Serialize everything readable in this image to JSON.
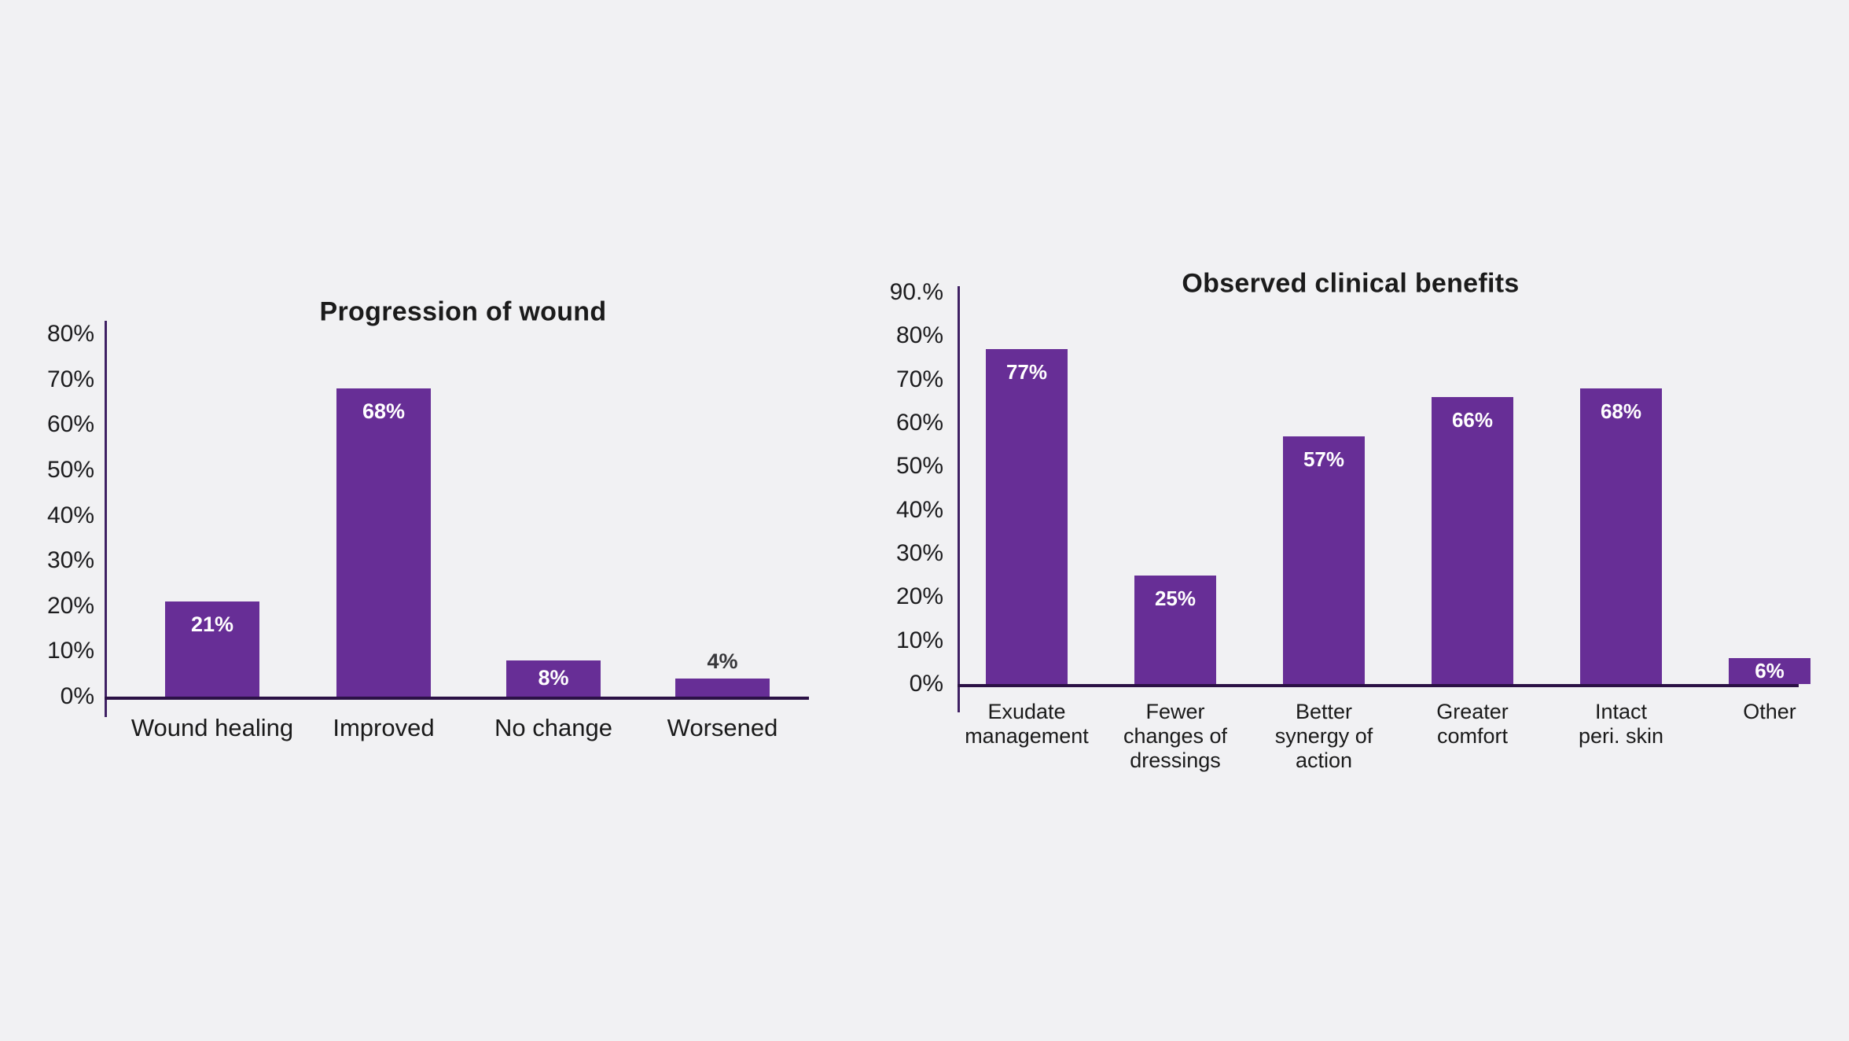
{
  "page": {
    "background": "#f1f1f3"
  },
  "colors": {
    "bar": "#672e96",
    "axis_line": "#3f2063",
    "baseline": "#2b1145",
    "title_text": "#1b1b1b",
    "tick_text": "#1c1c1e",
    "category_text": "#1a1a1a",
    "value_label_inside": "#ffffff",
    "value_label_outside": "#38383b"
  },
  "chart_data": [
    {
      "type": "bar",
      "title": "Progression of wound",
      "categories": [
        "Wound healing",
        "Improved",
        "No change",
        "Worsened"
      ],
      "category_lines": [
        [
          "Wound healing"
        ],
        [
          "Improved"
        ],
        [
          "No change"
        ],
        [
          "Worsened"
        ]
      ],
      "values": [
        21,
        68,
        8,
        4
      ],
      "value_labels": [
        "21%",
        "68%",
        "8%",
        "4%"
      ],
      "value_label_placement": [
        "inside",
        "inside",
        "inside",
        "above"
      ],
      "xlabel": "",
      "ylabel": "",
      "ylim": [
        0,
        80
      ],
      "ytick_labels": [
        "80%",
        "70%",
        "60%",
        "50%",
        "40%",
        "30%",
        "20%",
        "10%",
        "0%"
      ],
      "grid": false,
      "legend": null,
      "bar_color": "#672e96"
    },
    {
      "type": "bar",
      "title": "Observed clinical benefits",
      "categories": [
        "Exudate management",
        "Fewer changes of dressings",
        "Better synergy of action",
        "Greater comfort",
        "Intact peri. skin",
        "Other"
      ],
      "category_lines": [
        [
          "Exudate",
          "management"
        ],
        [
          "Fewer",
          "changes of",
          "dressings"
        ],
        [
          "Better",
          "synergy of",
          "action"
        ],
        [
          "Greater",
          "comfort"
        ],
        [
          "Intact",
          "peri. skin"
        ],
        [
          "Other"
        ]
      ],
      "values": [
        77,
        25,
        57,
        66,
        68,
        6
      ],
      "value_labels": [
        "77%",
        "25%",
        "57%",
        "66%",
        "68%",
        "6%"
      ],
      "value_label_placement": [
        "inside",
        "inside",
        "inside",
        "inside",
        "inside",
        "inside"
      ],
      "xlabel": "",
      "ylabel": "",
      "ylim": [
        0,
        90
      ],
      "ytick_labels": [
        "90.%",
        "80%",
        "70%",
        "60%",
        "50%",
        "40%",
        "30%",
        "20%",
        "10%",
        "0%"
      ],
      "grid": false,
      "legend": null,
      "bar_color": "#672e96"
    }
  ]
}
